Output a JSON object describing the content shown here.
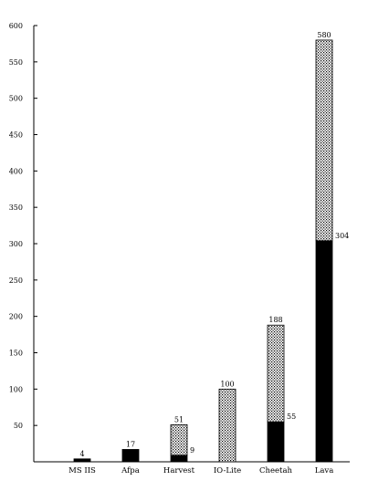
{
  "chart_data": {
    "type": "bar",
    "stacked": true,
    "title": "",
    "xlabel": "",
    "ylabel": "",
    "ylim": [
      0,
      600
    ],
    "yticks": [
      50,
      100,
      150,
      200,
      250,
      300,
      350,
      400,
      450,
      500,
      550,
      600
    ],
    "grid": false,
    "legend": "none",
    "categories": [
      "MS IIS",
      "Afpa",
      "Harvest",
      "IO-Lite",
      "Cheetah",
      "Lava"
    ],
    "series": [
      {
        "pattern": "solid-black",
        "values": [
          4,
          17,
          9,
          0,
          55,
          304
        ]
      },
      {
        "pattern": "dotted-hatch",
        "values": [
          0,
          0,
          42,
          100,
          133,
          276
        ]
      }
    ],
    "labels": [
      {
        "category": "MS IIS",
        "text": "4",
        "placement": "top"
      },
      {
        "category": "Afpa",
        "text": "17",
        "placement": "top"
      },
      {
        "category": "Harvest",
        "text": "51",
        "placement": "top"
      },
      {
        "category": "Harvest",
        "text": "9",
        "placement": "right"
      },
      {
        "category": "IO-Lite",
        "text": "100",
        "placement": "top"
      },
      {
        "category": "Cheetah",
        "text": "188",
        "placement": "top"
      },
      {
        "category": "Cheetah",
        "text": "55",
        "placement": "right"
      },
      {
        "category": "Lava",
        "text": "580",
        "placement": "top"
      },
      {
        "category": "Lava",
        "text": "304",
        "placement": "right"
      }
    ]
  }
}
